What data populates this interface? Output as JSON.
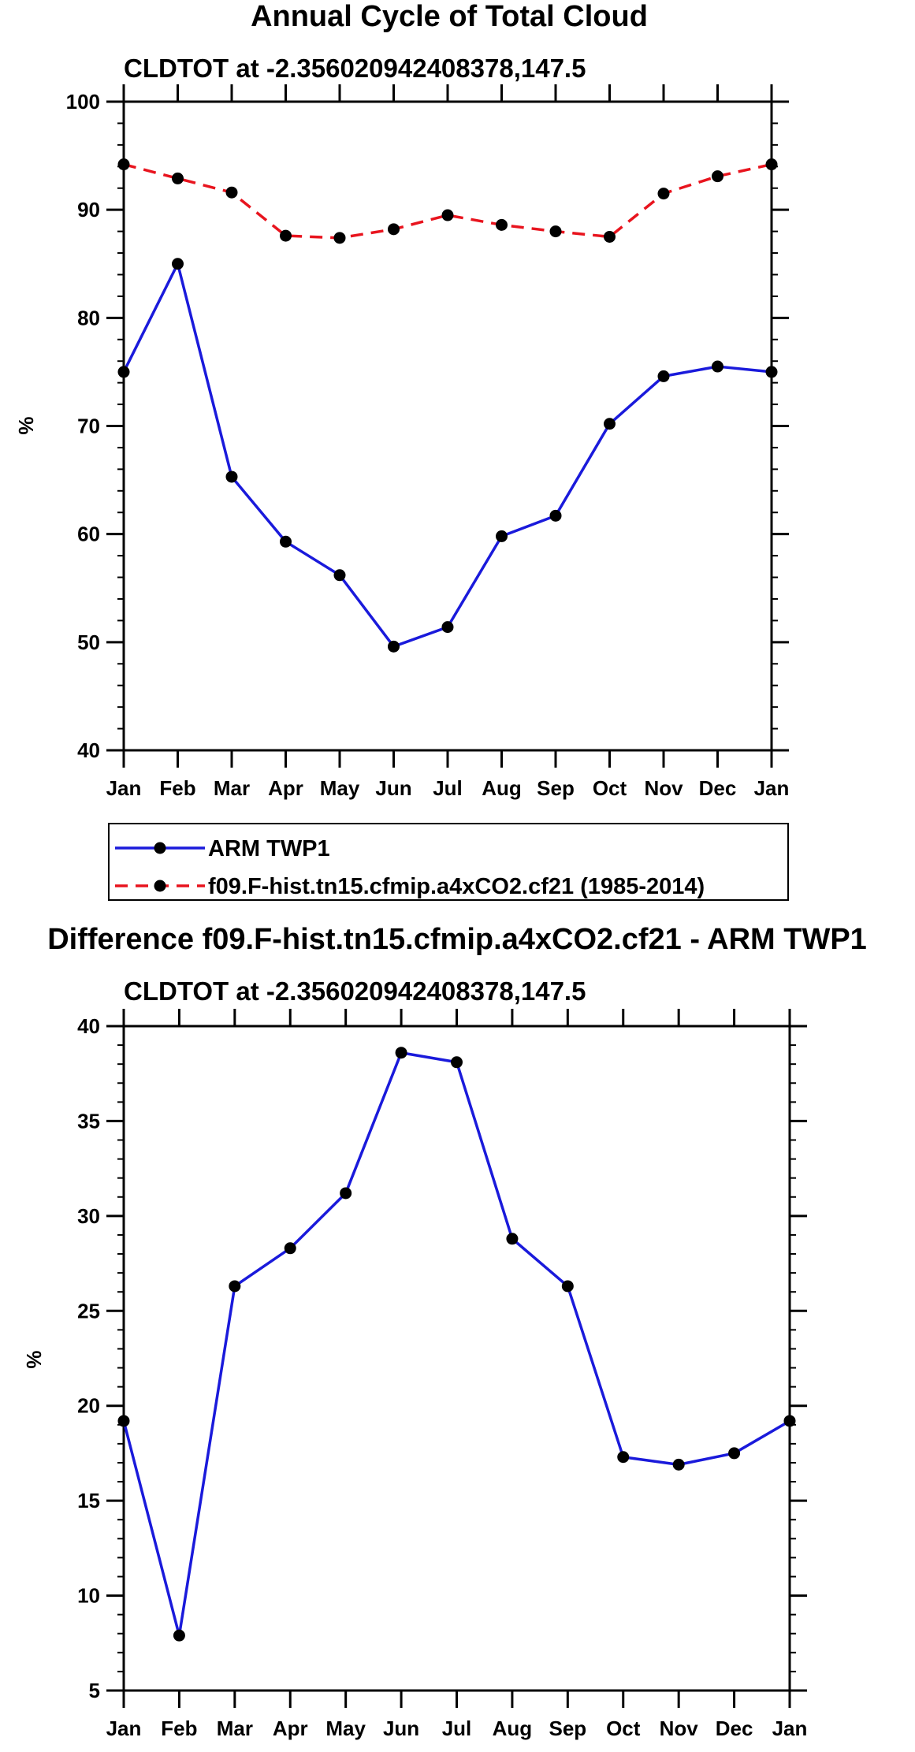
{
  "colors": {
    "obs_line": "#1a1adb",
    "model_line": "#e8141e",
    "marker": "#000000",
    "frame": "#000000"
  },
  "chart_data": [
    {
      "type": "line",
      "title": "Annual Cycle of Total Cloud",
      "subtitle": "CLDTOT at -2.356020942408378,147.5",
      "xlabel": "",
      "ylabel": "%",
      "categories": [
        "Jan",
        "Feb",
        "Mar",
        "Apr",
        "May",
        "Jun",
        "Jul",
        "Aug",
        "Sep",
        "Oct",
        "Nov",
        "Dec",
        "Jan"
      ],
      "ylim": [
        40,
        100
      ],
      "yticks": [
        40,
        50,
        60,
        70,
        80,
        90,
        100
      ],
      "series": [
        {
          "name": "ARM TWP1",
          "style": "solid",
          "values": [
            75.0,
            85.0,
            65.3,
            59.3,
            56.2,
            49.6,
            51.4,
            59.8,
            61.7,
            70.2,
            74.6,
            75.5,
            75.0
          ]
        },
        {
          "name": "f09.F-hist.tn15.cfmip.a4xCO2.cf21 (1985-2014)",
          "style": "dashed",
          "values": [
            94.2,
            92.9,
            91.6,
            87.6,
            87.4,
            88.2,
            89.5,
            88.6,
            88.0,
            87.5,
            91.5,
            93.1,
            94.2
          ]
        }
      ],
      "legend": {
        "entries": [
          "ARM TWP1",
          "f09.F-hist.tn15.cfmip.a4xCO2.cf21 (1985-2014)"
        ],
        "placement": "below-plot"
      }
    },
    {
      "type": "line",
      "title": "Difference f09.F-hist.tn15.cfmip.a4xCO2.cf21 - ARM TWP1",
      "subtitle": "CLDTOT at -2.356020942408378,147.5",
      "xlabel": "",
      "ylabel": "%",
      "categories": [
        "Jan",
        "Feb",
        "Mar",
        "Apr",
        "May",
        "Jun",
        "Jul",
        "Aug",
        "Sep",
        "Oct",
        "Nov",
        "Dec",
        "Jan"
      ],
      "ylim": [
        5,
        40
      ],
      "yticks": [
        5,
        10,
        15,
        20,
        25,
        30,
        35,
        40
      ],
      "series": [
        {
          "name": "Difference",
          "style": "solid",
          "values": [
            19.2,
            7.9,
            26.3,
            28.3,
            31.2,
            38.6,
            38.1,
            28.8,
            26.3,
            17.3,
            16.9,
            17.5,
            19.2
          ]
        }
      ]
    }
  ]
}
